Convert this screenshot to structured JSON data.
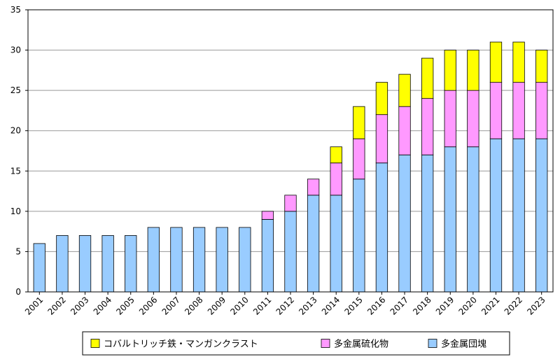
{
  "chart_data": {
    "type": "bar",
    "stacked": true,
    "title": "",
    "xlabel": "",
    "ylabel": "",
    "ylim": [
      0,
      35
    ],
    "yticks": [
      0,
      5,
      10,
      15,
      20,
      25,
      30,
      35
    ],
    "grid": "horizontal",
    "legend_position": "bottom",
    "categories": [
      "2001",
      "2002",
      "2003",
      "2004",
      "2005",
      "2006",
      "2007",
      "2008",
      "2009",
      "2010",
      "2011",
      "2012",
      "2013",
      "2014",
      "2015",
      "2016",
      "2017",
      "2018",
      "2019",
      "2020",
      "2021",
      "2022",
      "2023"
    ],
    "series": [
      {
        "name": "多金属団塊",
        "color": "#99CCFF",
        "values": [
          6,
          7,
          7,
          7,
          7,
          8,
          8,
          8,
          8,
          8,
          9,
          10,
          12,
          12,
          14,
          16,
          17,
          17,
          18,
          18,
          19,
          19,
          19
        ]
      },
      {
        "name": "多金属硫化物",
        "color": "#FF99FF",
        "values": [
          0,
          0,
          0,
          0,
          0,
          0,
          0,
          0,
          0,
          0,
          1,
          2,
          2,
          4,
          5,
          6,
          6,
          7,
          7,
          7,
          7,
          7,
          7
        ]
      },
      {
        "name": "コバルトリッチ鉄・マンガンクラスト",
        "color": "#FFFF00",
        "values": [
          0,
          0,
          0,
          0,
          0,
          0,
          0,
          0,
          0,
          0,
          0,
          0,
          0,
          2,
          4,
          4,
          4,
          5,
          5,
          5,
          5,
          5,
          4
        ]
      }
    ],
    "legend_order": [
      "コバルトリッチ鉄・マンガンクラスト",
      "多金属硫化物",
      "多金属団塊"
    ]
  }
}
